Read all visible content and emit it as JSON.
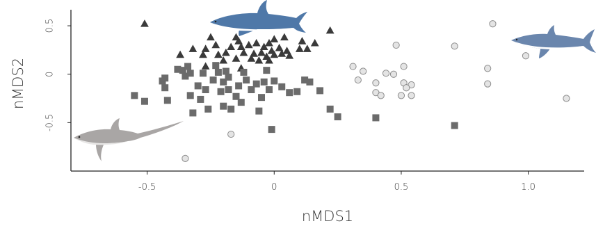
{
  "chart_data": {
    "type": "scatter",
    "title": "",
    "xlabel": "nMDS1",
    "ylabel": "nMDS2",
    "xlim": [
      -0.8,
      1.22
    ],
    "ylim": [
      -1.0,
      0.68
    ],
    "xticks": [
      -0.5,
      0,
      0.5,
      1.0
    ],
    "xtick_labels": [
      "-0.5",
      "0",
      "0.5",
      "1.0"
    ],
    "yticks": [
      -0.5,
      0,
      0.5
    ],
    "ytick_labels": [
      "-0.5",
      "0",
      "0.5"
    ],
    "grid": false,
    "legend": "none",
    "colors": {
      "triangle": "#3a3a3a",
      "square": "#6b6b6b",
      "circle_fill": "#e4e4e4",
      "circle_stroke": "#8c8c8c",
      "blue_shark": "#4f78a8",
      "mako_shark": "#6a86ad",
      "thresher_shark": "#a9a6a5"
    },
    "icons": [
      "blue-shark-icon",
      "mako-shark-icon",
      "thresher-shark-icon"
    ],
    "series": [
      {
        "marker": "triangle",
        "points": [
          [
            -0.51,
            0.52
          ],
          [
            0.22,
            0.45
          ],
          [
            -0.25,
            0.38
          ],
          [
            -0.15,
            0.38
          ],
          [
            -0.14,
            0.34
          ],
          [
            -0.07,
            0.32
          ],
          [
            -0.02,
            0.32
          ],
          [
            0.04,
            0.38
          ],
          [
            0.11,
            0.34
          ],
          [
            0.16,
            0.32
          ],
          [
            0.0,
            0.36
          ],
          [
            -0.32,
            0.26
          ],
          [
            -0.27,
            0.26
          ],
          [
            -0.23,
            0.3
          ],
          [
            -0.17,
            0.28
          ],
          [
            -0.13,
            0.28
          ],
          [
            -0.1,
            0.3
          ],
          [
            -0.04,
            0.28
          ],
          [
            0.02,
            0.27
          ],
          [
            -0.01,
            0.24
          ],
          [
            0.05,
            0.24
          ],
          [
            0.1,
            0.26
          ],
          [
            0.13,
            0.26
          ],
          [
            -0.37,
            0.2
          ],
          [
            -0.28,
            0.2
          ],
          [
            -0.22,
            0.2
          ],
          [
            -0.19,
            0.22
          ],
          [
            -0.12,
            0.22
          ],
          [
            -0.08,
            0.21
          ],
          [
            -0.05,
            0.22
          ],
          [
            -0.03,
            0.18
          ],
          [
            0.0,
            0.2
          ],
          [
            0.03,
            0.21
          ],
          [
            0.06,
            0.19
          ],
          [
            -0.2,
            0.14
          ],
          [
            -0.15,
            0.16
          ],
          [
            -0.09,
            0.16
          ],
          [
            -0.06,
            0.14
          ],
          [
            -0.02,
            0.14
          ],
          [
            -0.27,
            0.08
          ],
          [
            -0.13,
            0.06
          ]
        ]
      },
      {
        "marker": "square",
        "points": [
          [
            -0.55,
            -0.22
          ],
          [
            -0.51,
            -0.28
          ],
          [
            -0.44,
            -0.07
          ],
          [
            -0.43,
            -0.04
          ],
          [
            -0.43,
            -0.14
          ],
          [
            -0.42,
            -0.27
          ],
          [
            -0.38,
            0.05
          ],
          [
            -0.36,
            0.04
          ],
          [
            -0.35,
            -0.02
          ],
          [
            -0.34,
            0.08
          ],
          [
            -0.33,
            0.01
          ],
          [
            -0.33,
            -0.22
          ],
          [
            -0.32,
            -0.4
          ],
          [
            -0.3,
            -0.12
          ],
          [
            -0.29,
            -0.26
          ],
          [
            -0.28,
            0.01
          ],
          [
            -0.27,
            -0.16
          ],
          [
            -0.26,
            -0.36
          ],
          [
            -0.24,
            -0.06
          ],
          [
            -0.23,
            0.09
          ],
          [
            -0.22,
            0.02
          ],
          [
            -0.21,
            -0.18
          ],
          [
            -0.2,
            -0.08
          ],
          [
            -0.2,
            -0.33
          ],
          [
            -0.19,
            0.03
          ],
          [
            -0.18,
            -0.03
          ],
          [
            -0.18,
            -0.16
          ],
          [
            -0.17,
            -0.36
          ],
          [
            -0.15,
            -0.23
          ],
          [
            -0.14,
            -0.12
          ],
          [
            -0.13,
            -0.29
          ],
          [
            -0.12,
            0.02
          ],
          [
            -0.11,
            -0.06
          ],
          [
            -0.09,
            -0.16
          ],
          [
            -0.07,
            -0.1
          ],
          [
            -0.06,
            -0.38
          ],
          [
            -0.05,
            -0.24
          ],
          [
            -0.04,
            -0.08
          ],
          [
            -0.03,
            0.04
          ],
          [
            -0.02,
            -0.16
          ],
          [
            -0.01,
            -0.57
          ],
          [
            0.0,
            -0.07
          ],
          [
            0.03,
            -0.13
          ],
          [
            0.06,
            -0.19
          ],
          [
            0.09,
            -0.18
          ],
          [
            0.12,
            -0.06
          ],
          [
            0.14,
            -0.08
          ],
          [
            0.18,
            -0.17
          ],
          [
            0.22,
            -0.36
          ],
          [
            0.25,
            -0.44
          ],
          [
            0.4,
            -0.45
          ],
          [
            0.71,
            -0.53
          ]
        ]
      },
      {
        "marker": "circle",
        "points": [
          [
            0.86,
            0.52
          ],
          [
            0.71,
            0.29
          ],
          [
            0.48,
            0.3
          ],
          [
            0.99,
            0.19
          ],
          [
            0.31,
            0.08
          ],
          [
            0.35,
            0.03
          ],
          [
            0.44,
            0.01
          ],
          [
            0.47,
            0.0
          ],
          [
            0.51,
            0.08
          ],
          [
            0.33,
            -0.06
          ],
          [
            0.4,
            -0.09
          ],
          [
            0.51,
            -0.09
          ],
          [
            0.54,
            -0.11
          ],
          [
            0.52,
            -0.14
          ],
          [
            0.84,
            0.06
          ],
          [
            0.84,
            -0.1
          ],
          [
            0.4,
            -0.19
          ],
          [
            0.42,
            -0.22
          ],
          [
            0.5,
            -0.22
          ],
          [
            0.54,
            -0.22
          ],
          [
            1.15,
            -0.25
          ],
          [
            -0.17,
            -0.62
          ],
          [
            -0.35,
            -0.87
          ]
        ]
      }
    ]
  }
}
